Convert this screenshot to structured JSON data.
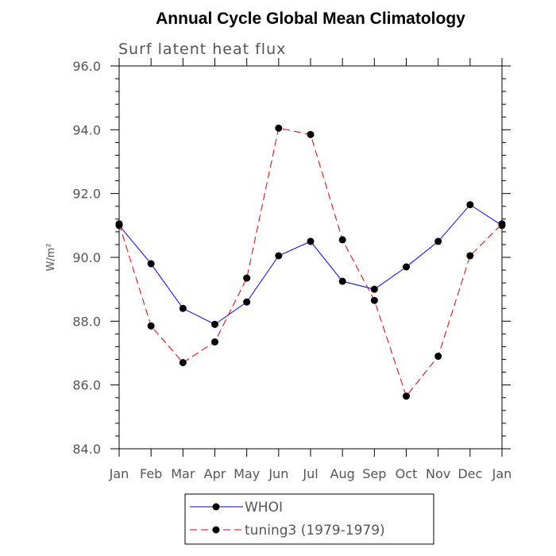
{
  "chart_data": {
    "type": "line",
    "title": "Annual Cycle Global Mean Climatology",
    "subtitle": "Surf latent heat flux",
    "xlabel": "",
    "ylabel": "W/m²",
    "categories": [
      "Jan",
      "Feb",
      "Mar",
      "Apr",
      "May",
      "Jun",
      "Jul",
      "Aug",
      "Sep",
      "Oct",
      "Nov",
      "Dec",
      "Jan"
    ],
    "ylim": [
      84.0,
      96.0
    ],
    "yticks": [
      "84.0",
      "86.0",
      "88.0",
      "90.0",
      "92.0",
      "94.0",
      "96.0"
    ],
    "grid": false,
    "legend_position": "bottom",
    "series": [
      {
        "name": "WHOI",
        "color": "#0000ff",
        "dash": "solid",
        "values": [
          91.0,
          89.8,
          88.4,
          87.9,
          88.6,
          90.05,
          90.5,
          89.25,
          89.0,
          89.7,
          90.5,
          91.65,
          91.0
        ]
      },
      {
        "name": "tuning3 (1979-1979)",
        "color": "#e00000",
        "dash": "dashed",
        "values": [
          91.05,
          87.85,
          86.7,
          87.35,
          89.35,
          94.05,
          93.85,
          90.55,
          88.65,
          85.65,
          86.9,
          90.05,
          91.05
        ]
      }
    ]
  }
}
